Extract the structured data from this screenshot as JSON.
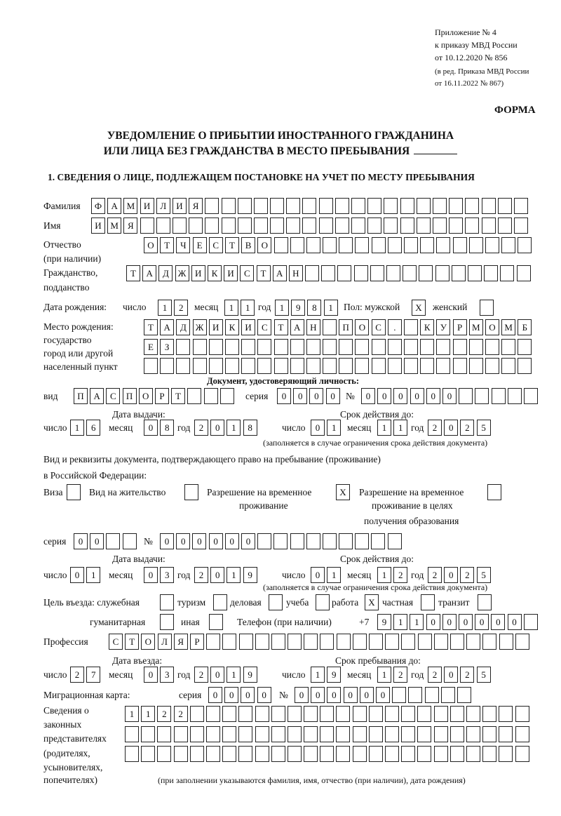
{
  "header": {
    "line1": "Приложение № 4",
    "line2": "к приказу МВД России",
    "line3": "от 10.12.2020 № 856",
    "line4": "(в ред. Приказа МВД России",
    "line5": "от 16.11.2022 № 867)",
    "form": "ФОРМА"
  },
  "title": {
    "line1": "УВЕДОМЛЕНИЕ О ПРИБЫТИИ ИНОСТРАННОГО ГРАЖДАНИНА",
    "line2": "ИЛИ ЛИЦА БЕЗ ГРАЖДАНСТВА В МЕСТО ПРЕБЫВАНИЯ"
  },
  "section1": "1. СВЕДЕНИЯ О ЛИЦЕ, ПОДЛЕЖАЩЕМ ПОСТАНОВКЕ НА УЧЕТ ПО МЕСТУ ПРЕБЫВАНИЯ",
  "labels": {
    "surname": "Фамилия",
    "name": "Имя",
    "patronymic": "Отчество",
    "patronymic2": "(при наличии)",
    "citizenship": "Гражданство,",
    "citizenship2": "подданство",
    "birth_date": "Дата рождения:",
    "day": "число",
    "month": "месяц",
    "year": "год",
    "sex": "Пол: мужской",
    "female": "женский",
    "birthplace1": "Место рождения:",
    "birthplace2": "государство",
    "birthplace3": "город или другой",
    "birthplace4": "населенный пункт",
    "id_doc": "Документ, удостоверяющий личность:",
    "kind": "вид",
    "series": "серия",
    "number": "№",
    "issue_date": "Дата выдачи:",
    "valid_until": "Срок действия до:",
    "valid_note": "(заполняется в случае ограничения срока действия документа)",
    "right_doc1": "Вид и реквизиты документа, подтверждающего право на пребывание (проживание)",
    "right_doc2": "в Российской Федерации:",
    "visa": "Виза",
    "residence": "Вид на жительство",
    "temp1": "Разрешение на временное",
    "temp2": "проживание",
    "edu1": "Разрешение на временное",
    "edu2": "проживание в целях",
    "edu3": "получения образования",
    "purpose": "Цель въезда: служебная",
    "tourism": "туризм",
    "business": "деловая",
    "study": "учеба",
    "work": "работа",
    "private": "частная",
    "transit": "транзит",
    "humanitarian": "гуманитарная",
    "other": "иная",
    "phone": "Телефон (при наличии)",
    "phone_prefix": "+7",
    "profession": "Профессия",
    "entry_date": "Дата въезда:",
    "stay_until": "Срок пребывания до:",
    "migration_card": "Миграционная карта:",
    "reps1": "Сведения о",
    "reps2": "законных",
    "reps3": "представителях",
    "reps4": "(родителях,",
    "reps5": "усыновителях,",
    "reps6": "попечителях)",
    "reps_note": "(при заполнении указываются фамилия, имя, отчество (при наличии), дата рождения)"
  },
  "values": {
    "surname": "ФАМИЛИЯ",
    "name": "ИМЯ",
    "patronymic": "ОТЧЕСТВО",
    "citizenship": "ТАДЖИКИСТАН",
    "birth": {
      "day": "12",
      "month": "11",
      "year": "1981"
    },
    "male": "X",
    "female": "",
    "birthplace": [
      "ТАДЖИКИСТАН ПОС. КУРМОМБ",
      "ЕЗ",
      ""
    ],
    "id_doc": {
      "kind": "ПАСПОРТ",
      "series": "0000",
      "number": "000000",
      "issue": {
        "day": "16",
        "month": "08",
        "year": "2018"
      },
      "valid": {
        "day": "01",
        "month": "11",
        "year": "2025"
      }
    },
    "right_doc": {
      "visa": "",
      "residence": "",
      "temp": "X",
      "edu": "",
      "series": "00",
      "number": "000000",
      "issue": {
        "day": "01",
        "month": "03",
        "year": "2019"
      },
      "valid": {
        "day": "01",
        "month": "12",
        "year": "2025"
      }
    },
    "purpose": {
      "service": "",
      "tourism": "",
      "business": "",
      "study": "",
      "work": "X",
      "private": "",
      "transit": "",
      "humanitarian": "",
      "other": ""
    },
    "phone": "911000000",
    "profession": "СТОЛЯР",
    "entry": {
      "day": "27",
      "month": "03",
      "year": "2019"
    },
    "stay": {
      "day": "19",
      "month": "12",
      "year": "2025"
    },
    "migration_card": {
      "series": "0000",
      "number": "000000"
    },
    "reps": [
      "1122",
      "",
      ""
    ]
  }
}
